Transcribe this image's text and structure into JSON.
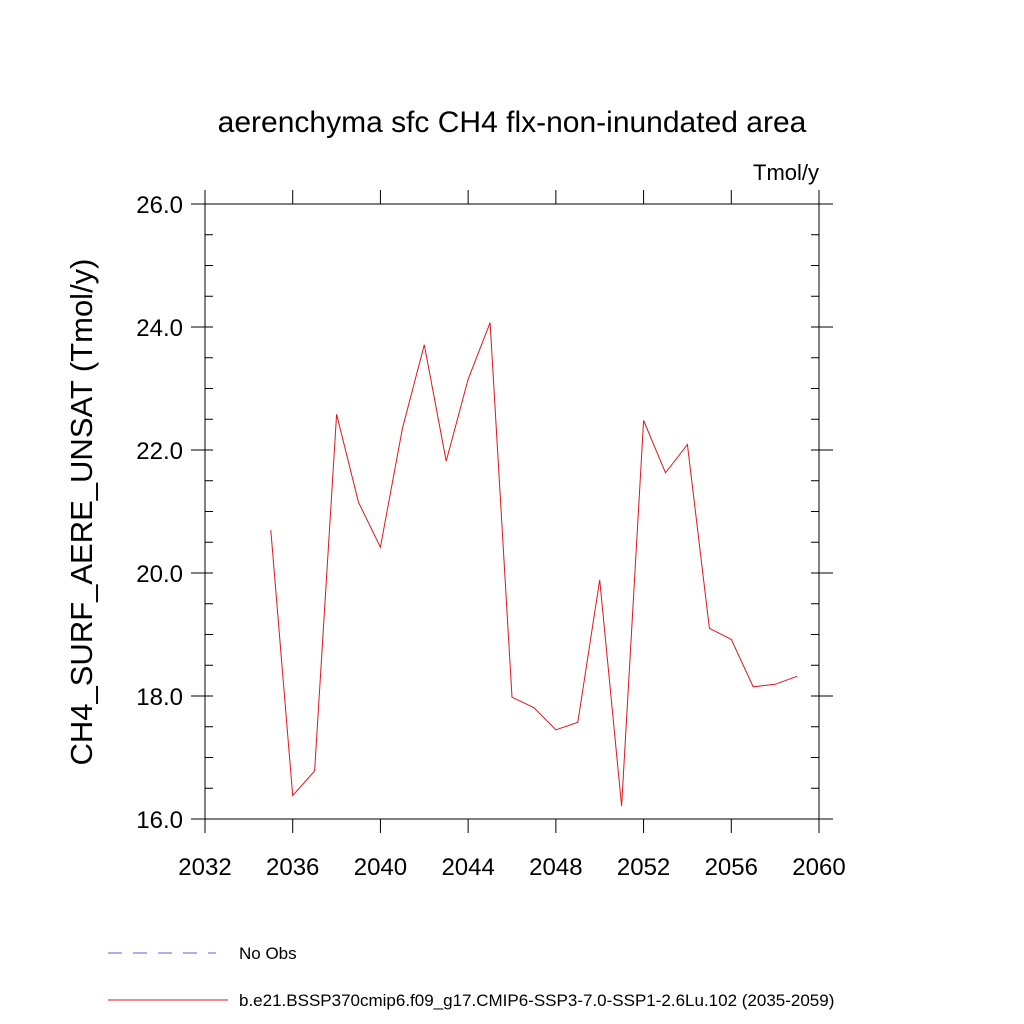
{
  "chart_data": {
    "type": "line",
    "title": "aerenchyma sfc CH4 flx-non-inundated area",
    "units_label": "Tmol/y",
    "ylabel": "CH4_SURF_AERE_UNSAT  (Tmol/y)",
    "xlabel": "",
    "xlim": [
      2032,
      2060
    ],
    "ylim": [
      16.0,
      26.0
    ],
    "x_ticks": [
      2032,
      2036,
      2040,
      2044,
      2048,
      2052,
      2056,
      2060
    ],
    "y_ticks": [
      "16.0",
      "18.0",
      "20.0",
      "22.0",
      "24.0",
      "26.0"
    ],
    "grid": false,
    "legend_position": "bottom",
    "series": [
      {
        "name": "b.e21.BSSP370cmip6.f09_g17.CMIP6-SSP3-7.0-SSP1-2.6Lu.102 (2035-2059)",
        "color": "#e0161a",
        "style": "solid",
        "x": [
          2035,
          2036,
          2037,
          2038,
          2039,
          2040,
          2041,
          2042,
          2043,
          2044,
          2045,
          2046,
          2047,
          2048,
          2049,
          2050,
          2051,
          2052,
          2053,
          2054,
          2055,
          2056,
          2057,
          2058,
          2059
        ],
        "y": [
          20.7,
          16.38,
          16.78,
          22.58,
          21.15,
          20.42,
          22.35,
          23.71,
          21.82,
          23.15,
          24.07,
          17.98,
          17.81,
          17.45,
          17.57,
          19.89,
          16.21,
          22.48,
          21.63,
          22.09,
          19.1,
          18.92,
          18.15,
          18.19,
          18.32
        ]
      }
    ],
    "legend": [
      {
        "label": "No Obs",
        "color": "#6a5acd",
        "style": "dashed"
      },
      {
        "label": "b.e21.BSSP370cmip6.f09_g17.CMIP6-SSP3-7.0-SSP1-2.6Lu.102 (2035-2059)",
        "color": "#e0161a",
        "style": "solid"
      }
    ]
  }
}
